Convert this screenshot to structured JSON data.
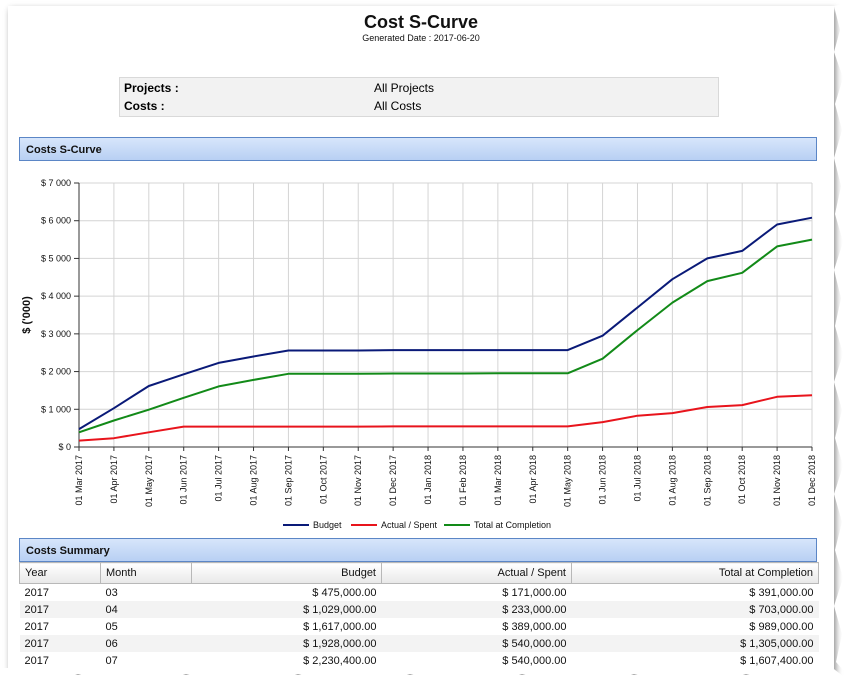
{
  "report": {
    "title": "Cost S-Curve",
    "generated": "Generated Date : 2017-06-20"
  },
  "filters": [
    {
      "label": "Projects :",
      "value": "All Projects"
    },
    {
      "label": "Costs :",
      "value": "All Costs"
    }
  ],
  "sections": {
    "chart": "Costs S-Curve",
    "summary": "Costs Summary"
  },
  "chart_data": {
    "type": "line",
    "title": "",
    "xlabel": "",
    "ylabel": "$ ('000)",
    "ylim": [
      0,
      7000
    ],
    "yticks": [
      "$ 0",
      "$ 1 000",
      "$ 2 000",
      "$ 3 000",
      "$ 4 000",
      "$ 5 000",
      "$ 6 000",
      "$ 7 000"
    ],
    "x": [
      "01 Mar 2017",
      "01 Apr 2017",
      "01 May 2017",
      "01 Jun 2017",
      "01 Jul 2017",
      "01 Aug 2017",
      "01 Sep 2017",
      "01 Oct 2017",
      "01 Nov 2017",
      "01 Dec 2017",
      "01 Jan 2018",
      "01 Feb 2018",
      "01 Mar 2018",
      "01 Apr 2018",
      "01 May 2018",
      "01 Jun 2018",
      "01 Jul 2018",
      "01 Aug 2018",
      "01 Sep 2018",
      "01 Oct 2018",
      "01 Nov 2018",
      "01 Dec 2018"
    ],
    "grid": true,
    "legend": "bottom",
    "series": [
      {
        "name": "Budget",
        "color": "#0a1a78",
        "values": [
          475,
          1029,
          1617,
          1928,
          2230,
          2400,
          2560,
          2560,
          2560,
          2570,
          2570,
          2570,
          2570,
          2570,
          2570,
          2950,
          3700,
          4450,
          5000,
          5200,
          5900,
          6080
        ]
      },
      {
        "name": "Actual / Spent",
        "color": "#e8141c",
        "values": [
          171,
          233,
          389,
          540,
          540,
          540,
          540,
          540,
          540,
          545,
          545,
          545,
          545,
          545,
          545,
          660,
          830,
          900,
          1060,
          1110,
          1330,
          1370
        ]
      },
      {
        "name": "Total at Completion",
        "color": "#128a18",
        "values": [
          391,
          703,
          989,
          1305,
          1607,
          1780,
          1940,
          1940,
          1940,
          1950,
          1950,
          1950,
          1955,
          1955,
          1955,
          2340,
          3100,
          3830,
          4400,
          4620,
          5320,
          5500
        ]
      }
    ]
  },
  "table": {
    "headers": [
      "Year",
      "Month",
      "Budget",
      "Actual / Spent",
      "Total at Completion"
    ],
    "rows": [
      [
        "2017",
        "03",
        "$ 475,000.00",
        "$ 171,000.00",
        "$ 391,000.00"
      ],
      [
        "2017",
        "04",
        "$ 1,029,000.00",
        "$ 233,000.00",
        "$ 703,000.00"
      ],
      [
        "2017",
        "05",
        "$ 1,617,000.00",
        "$ 389,000.00",
        "$ 989,000.00"
      ],
      [
        "2017",
        "06",
        "$ 1,928,000.00",
        "$ 540,000.00",
        "$ 1,305,000.00"
      ],
      [
        "2017",
        "07",
        "$ 2,230,400.00",
        "$ 540,000.00",
        "$ 1,607,400.00"
      ]
    ]
  }
}
